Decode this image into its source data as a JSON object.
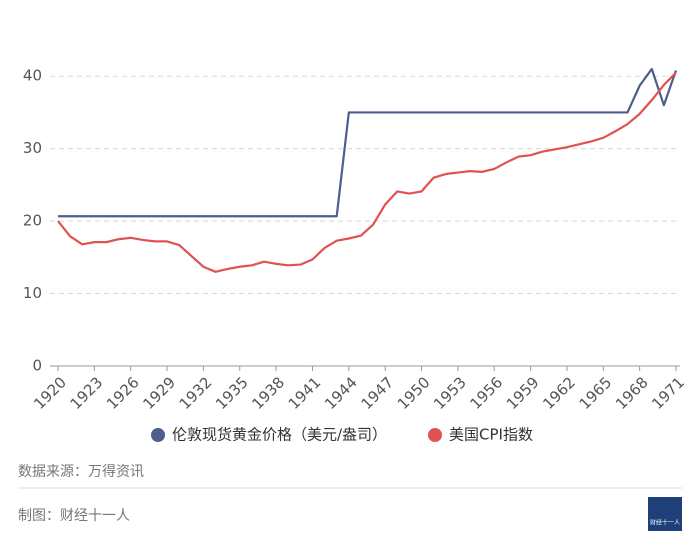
{
  "chart_data": {
    "type": "line",
    "x": [
      1920,
      1921,
      1922,
      1923,
      1924,
      1925,
      1926,
      1927,
      1928,
      1929,
      1930,
      1931,
      1932,
      1933,
      1934,
      1935,
      1936,
      1937,
      1938,
      1939,
      1940,
      1941,
      1942,
      1943,
      1944,
      1945,
      1946,
      1947,
      1948,
      1949,
      1950,
      1951,
      1952,
      1953,
      1954,
      1955,
      1956,
      1957,
      1958,
      1959,
      1960,
      1961,
      1962,
      1963,
      1964,
      1965,
      1966,
      1967,
      1968,
      1969,
      1970,
      1971
    ],
    "series": [
      {
        "name": "伦敦现货黄金价格（美元/盎司）",
        "color": "#4e5d8c",
        "values": [
          20.67,
          20.67,
          20.67,
          20.67,
          20.67,
          20.67,
          20.67,
          20.67,
          20.67,
          20.67,
          20.67,
          20.67,
          20.67,
          20.67,
          20.67,
          20.67,
          20.67,
          20.67,
          20.67,
          20.67,
          20.67,
          20.67,
          20.67,
          20.67,
          35,
          35,
          35,
          35,
          35,
          35,
          35,
          35,
          35,
          35,
          35,
          35,
          35,
          35,
          35,
          35,
          35,
          35,
          35,
          35,
          35,
          35,
          35,
          35,
          38.7,
          41.0,
          36.0,
          40.8
        ]
      },
      {
        "name": "美国CPI指数",
        "color": "#e05252",
        "values": [
          20.0,
          17.9,
          16.8,
          17.1,
          17.1,
          17.5,
          17.7,
          17.4,
          17.2,
          17.2,
          16.7,
          15.2,
          13.7,
          13.0,
          13.4,
          13.7,
          13.9,
          14.4,
          14.1,
          13.9,
          14.0,
          14.7,
          16.3,
          17.3,
          17.6,
          18.0,
          19.5,
          22.3,
          24.1,
          23.8,
          24.1,
          26.0,
          26.5,
          26.7,
          26.9,
          26.8,
          27.2,
          28.1,
          28.9,
          29.1,
          29.6,
          29.9,
          30.2,
          30.6,
          31.0,
          31.5,
          32.4,
          33.4,
          34.8,
          36.7,
          38.8,
          40.5
        ]
      }
    ],
    "xlim": [
      1920,
      1971
    ],
    "xticks": [
      1920,
      1923,
      1926,
      1929,
      1932,
      1935,
      1938,
      1941,
      1944,
      1947,
      1950,
      1953,
      1956,
      1959,
      1962,
      1965,
      1968,
      1971
    ],
    "ylim": [
      0,
      45
    ],
    "yticks": [
      0,
      10,
      20,
      30,
      40
    ],
    "grid": true
  },
  "footer": {
    "source": "数据来源：万得资讯",
    "credit": "制图：财经十一人",
    "logo": "财经十一人"
  }
}
